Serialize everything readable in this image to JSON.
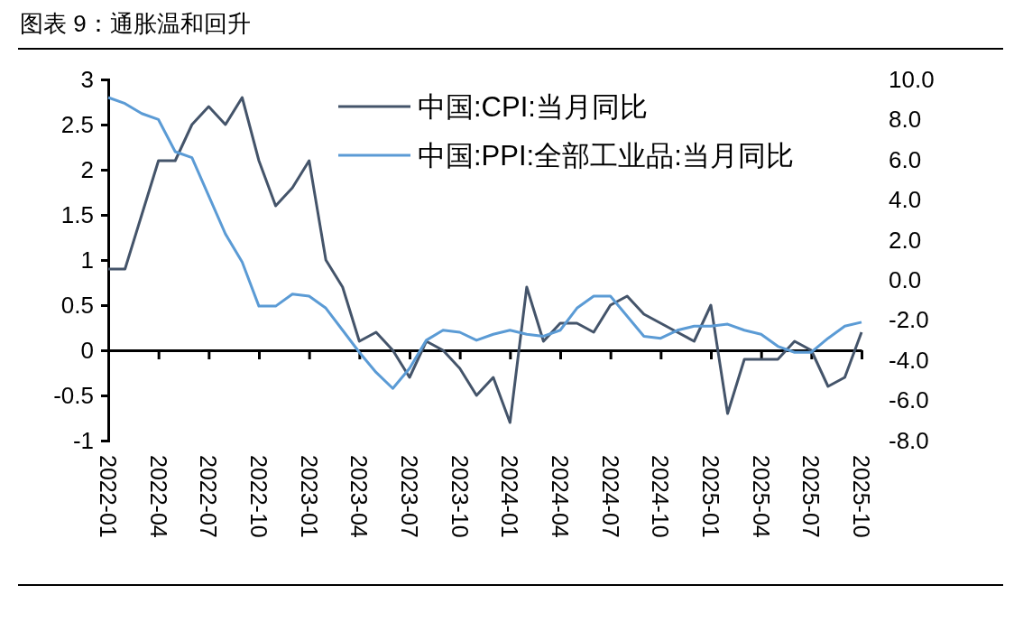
{
  "chart_data": {
    "type": "line",
    "title": "图表 9：通胀温和回升",
    "categories": [
      "2022-01",
      null,
      null,
      "2022-04",
      null,
      null,
      "2022-07",
      null,
      null,
      "2022-10",
      null,
      null,
      "2023-01",
      null,
      null,
      "2023-04",
      null,
      null,
      "2023-07",
      null,
      null,
      "2023-10",
      null,
      null,
      "2024-01",
      null,
      null,
      "2024-04",
      null,
      null,
      "2024-07",
      null,
      null,
      "2024-10",
      null,
      null,
      "2025-01",
      null,
      null,
      "2025-04",
      null,
      null,
      "2025-07",
      null,
      null,
      "2025-10"
    ],
    "series": [
      {
        "name": "中国:CPI:当月同比",
        "color": "#44546a",
        "values": [
          0.9,
          0.9,
          1.5,
          2.1,
          2.1,
          2.5,
          2.7,
          2.5,
          2.8,
          2.1,
          1.6,
          1.8,
          2.1,
          1.0,
          0.7,
          0.1,
          0.2,
          0.0,
          -0.3,
          0.1,
          0.0,
          -0.2,
          -0.5,
          -0.3,
          -0.8,
          0.7,
          0.1,
          0.3,
          0.3,
          0.2,
          0.5,
          0.6,
          0.4,
          0.3,
          0.2,
          0.1,
          0.5,
          -0.7,
          -0.1,
          -0.1,
          -0.1,
          0.1,
          0.0,
          -0.4,
          -0.3,
          0.2
        ]
      },
      {
        "name": "中国:PPI:全部工业品:当月同比",
        "color": "#5b9bd5",
        "axis": "y2",
        "values": [
          9.1,
          8.8,
          8.3,
          8.0,
          6.4,
          6.1,
          4.2,
          2.3,
          0.9,
          -1.3,
          -1.3,
          -0.7,
          -0.8,
          -1.4,
          -2.5,
          -3.6,
          -4.6,
          -5.4,
          -4.4,
          -3.0,
          -2.5,
          -2.6,
          -3.0,
          -2.7,
          -2.5,
          -2.7,
          -2.8,
          -2.5,
          -1.4,
          -0.8,
          -0.8,
          -1.8,
          -2.8,
          -2.9,
          -2.5,
          -2.3,
          -2.3,
          -2.2,
          -2.5,
          -2.7,
          -3.3,
          -3.6,
          -3.6,
          -2.9,
          -2.3,
          -2.1
        ]
      }
    ],
    "ylim": [
      -1,
      3
    ],
    "yticks": [
      -1,
      -0.5,
      0,
      0.5,
      1,
      1.5,
      2,
      2.5,
      3
    ],
    "y2lim": [
      -8,
      10
    ],
    "y2ticks": [
      {
        "value": -8,
        "label": "-8.0"
      },
      {
        "value": -6,
        "label": "-6.0"
      },
      {
        "value": -4,
        "label": "-4.0"
      },
      {
        "value": -2,
        "label": "-2.0"
      },
      {
        "value": 0,
        "label": "0.0"
      },
      {
        "value": 2,
        "label": "2.0"
      },
      {
        "value": 4,
        "label": "4.0"
      },
      {
        "value": 6,
        "label": "6.0"
      },
      {
        "value": 8,
        "label": "8.0"
      },
      {
        "value": 10,
        "label": "10.0"
      }
    ],
    "legend": "top right",
    "marker": "none",
    "line_style": "solid"
  }
}
